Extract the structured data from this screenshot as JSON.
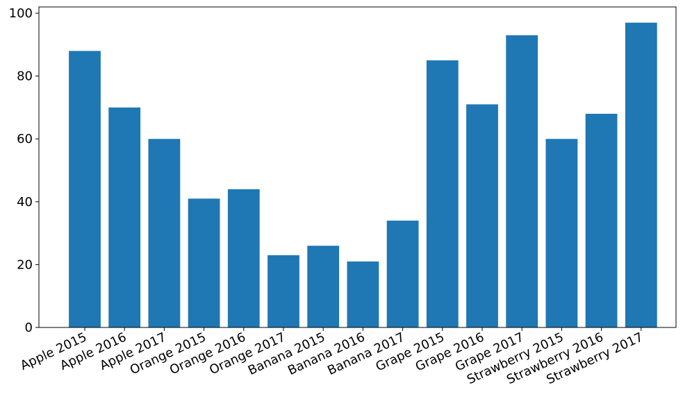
{
  "chart_data": {
    "type": "bar",
    "categories": [
      "Apple 2015",
      "Apple 2016",
      "Apple 2017",
      "Orange 2015",
      "Orange 2016",
      "Orange 2017",
      "Banana 2015",
      "Banana 2016",
      "Banana 2017",
      "Grape 2015",
      "Grape 2016",
      "Grape 2017",
      "Strawberry 2015",
      "Strawberry 2016",
      "Strawberry 2017"
    ],
    "values": [
      88,
      70,
      60,
      41,
      44,
      23,
      26,
      21,
      34,
      85,
      71,
      93,
      60,
      68,
      97
    ],
    "title": "",
    "xlabel": "",
    "ylabel": "",
    "ylim": [
      0,
      102
    ],
    "yticks": [
      0,
      20,
      40,
      60,
      80,
      100
    ],
    "grid": false,
    "bar_color": "#1f77b4"
  }
}
